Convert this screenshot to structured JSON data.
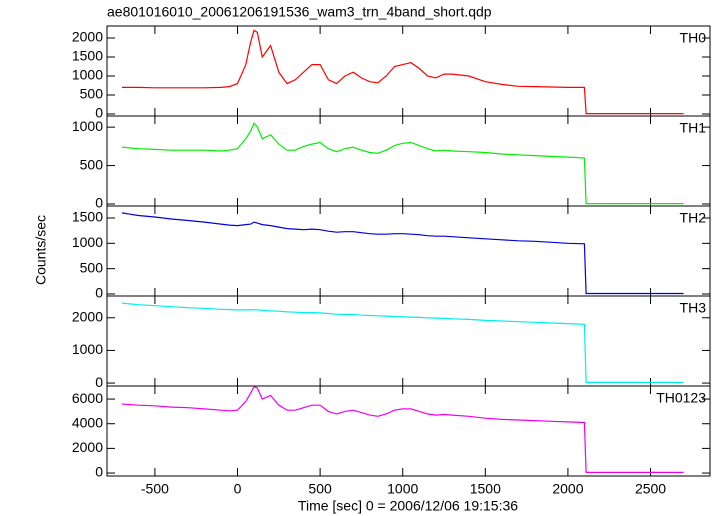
{
  "title": "ae801016010_20061206191536_wam3_trn_4band_short.qdp",
  "ylabel": "Counts/sec",
  "xlabel": "Time [sec] 0 = 2006/12/06 19:15:36",
  "chart_data": [
    {
      "type": "line",
      "x": [
        -700,
        -600,
        -500,
        -400,
        -300,
        -200,
        -100,
        -50,
        0,
        50,
        80,
        100,
        120,
        150,
        200,
        250,
        300,
        350,
        400,
        450,
        500,
        550,
        600,
        650,
        700,
        750,
        800,
        850,
        900,
        950,
        1000,
        1050,
        1100,
        1150,
        1200,
        1250,
        1300,
        1400,
        1500,
        1600,
        1700,
        1800,
        1900,
        2000,
        2100,
        2110,
        2300,
        2500,
        2700
      ],
      "series": [
        {
          "name": "TH0",
          "color": "#ff0000",
          "values": [
            700,
            700,
            690,
            690,
            690,
            690,
            700,
            720,
            800,
            1300,
            1900,
            2200,
            2150,
            1500,
            1800,
            1100,
            800,
            900,
            1100,
            1300,
            1300,
            900,
            800,
            1000,
            1100,
            950,
            850,
            820,
            1000,
            1250,
            1300,
            1350,
            1200,
            1000,
            950,
            1050,
            1050,
            1000,
            850,
            780,
            730,
            720,
            710,
            700,
            700,
            10,
            10,
            10,
            10
          ]
        }
      ],
      "xlim": [
        -790,
        2860
      ],
      "xticks": [
        -500,
        0,
        500,
        1000,
        1500,
        2000,
        2500
      ],
      "ylim": [
        -53,
        2316
      ],
      "yticks": [
        0,
        500,
        1000,
        1500,
        2000
      ]
    },
    {
      "type": "line",
      "x": [
        -700,
        -600,
        -500,
        -400,
        -300,
        -200,
        -100,
        -50,
        0,
        50,
        80,
        100,
        120,
        150,
        200,
        250,
        300,
        350,
        400,
        450,
        500,
        550,
        600,
        650,
        700,
        750,
        800,
        850,
        900,
        950,
        1000,
        1050,
        1100,
        1150,
        1200,
        1250,
        1300,
        1400,
        1500,
        1600,
        1700,
        1800,
        1900,
        2000,
        2100,
        2110,
        2300,
        2500,
        2700
      ],
      "series": [
        {
          "name": "TH1",
          "color": "#00ee00",
          "values": [
            740,
            720,
            710,
            700,
            700,
            700,
            690,
            700,
            720,
            850,
            950,
            1050,
            1000,
            850,
            900,
            780,
            700,
            700,
            750,
            780,
            800,
            720,
            680,
            720,
            740,
            700,
            670,
            660,
            700,
            760,
            790,
            800,
            760,
            720,
            690,
            700,
            690,
            680,
            670,
            650,
            640,
            630,
            620,
            610,
            600,
            5,
            5,
            5,
            5
          ]
        }
      ],
      "xlim": [
        -790,
        2860
      ],
      "xticks": [
        -500,
        0,
        500,
        1000,
        1500,
        2000,
        2500
      ],
      "ylim": [
        -26,
        1145
      ],
      "yticks": [
        0,
        500,
        1000
      ]
    },
    {
      "type": "line",
      "x": [
        -700,
        -600,
        -500,
        -400,
        -300,
        -200,
        -100,
        -50,
        0,
        50,
        80,
        100,
        120,
        150,
        200,
        250,
        300,
        350,
        400,
        450,
        500,
        550,
        600,
        650,
        700,
        750,
        800,
        850,
        900,
        950,
        1000,
        1050,
        1100,
        1150,
        1200,
        1250,
        1300,
        1400,
        1500,
        1600,
        1700,
        1800,
        1900,
        2000,
        2100,
        2110,
        2300,
        2500,
        2700
      ],
      "series": [
        {
          "name": "TH2",
          "color": "#0000dd",
          "values": [
            1600,
            1550,
            1520,
            1480,
            1450,
            1420,
            1380,
            1360,
            1350,
            1370,
            1380,
            1420,
            1400,
            1370,
            1350,
            1320,
            1290,
            1280,
            1270,
            1280,
            1270,
            1240,
            1220,
            1230,
            1230,
            1210,
            1190,
            1180,
            1180,
            1190,
            1190,
            1180,
            1170,
            1150,
            1140,
            1140,
            1130,
            1110,
            1090,
            1070,
            1050,
            1040,
            1020,
            1000,
            990,
            10,
            10,
            10,
            10
          ]
        }
      ],
      "xlim": [
        -790,
        2860
      ],
      "xticks": [
        -500,
        0,
        500,
        1000,
        1500,
        2000,
        2500
      ],
      "ylim": [
        -40,
        1737
      ],
      "yticks": [
        0,
        500,
        1000,
        1500
      ]
    },
    {
      "type": "line",
      "x": [
        -700,
        -600,
        -500,
        -400,
        -300,
        -200,
        -100,
        -50,
        0,
        50,
        80,
        100,
        120,
        150,
        200,
        250,
        300,
        350,
        400,
        450,
        500,
        550,
        600,
        650,
        700,
        750,
        800,
        850,
        900,
        950,
        1000,
        1050,
        1100,
        1150,
        1200,
        1250,
        1300,
        1400,
        1500,
        1600,
        1700,
        1800,
        1900,
        2000,
        2100,
        2110,
        2300,
        2500,
        2700
      ],
      "series": [
        {
          "name": "TH3",
          "color": "#00eeee",
          "values": [
            2450,
            2400,
            2370,
            2340,
            2310,
            2290,
            2260,
            2250,
            2240,
            2240,
            2240,
            2250,
            2240,
            2230,
            2210,
            2200,
            2180,
            2170,
            2160,
            2160,
            2150,
            2130,
            2110,
            2100,
            2100,
            2080,
            2070,
            2060,
            2050,
            2040,
            2030,
            2020,
            2010,
            2000,
            1990,
            1980,
            1970,
            1950,
            1920,
            1900,
            1880,
            1860,
            1840,
            1820,
            1800,
            20,
            20,
            20,
            20
          ]
        }
      ],
      "xlim": [
        -790,
        2860
      ],
      "xticks": [
        -500,
        0,
        500,
        1000,
        1500,
        2000,
        2500
      ],
      "ylim": [
        -90,
        2667
      ],
      "yticks": [
        0,
        1000,
        2000
      ]
    },
    {
      "type": "line",
      "x": [
        -700,
        -600,
        -500,
        -400,
        -300,
        -200,
        -100,
        -50,
        0,
        50,
        80,
        100,
        120,
        150,
        200,
        250,
        300,
        350,
        400,
        450,
        500,
        550,
        600,
        650,
        700,
        750,
        800,
        850,
        900,
        950,
        1000,
        1050,
        1100,
        1150,
        1200,
        1250,
        1300,
        1400,
        1500,
        1600,
        1700,
        1800,
        1900,
        2000,
        2100,
        2110,
        2300,
        2500,
        2700
      ],
      "series": [
        {
          "name": "TH0123",
          "color": "#ee00ee",
          "values": [
            5600,
            5500,
            5450,
            5350,
            5300,
            5200,
            5100,
            5050,
            5100,
            5800,
            6500,
            7000,
            6900,
            6000,
            6300,
            5500,
            5100,
            5100,
            5300,
            5500,
            5500,
            5000,
            4800,
            5000,
            5100,
            4900,
            4700,
            4600,
            4800,
            5100,
            5200,
            5200,
            5000,
            4800,
            4700,
            4750,
            4700,
            4600,
            4450,
            4350,
            4300,
            4250,
            4200,
            4150,
            4100,
            50,
            50,
            50,
            50
          ]
        }
      ],
      "xlim": [
        -790,
        2860
      ],
      "xticks": [
        -500,
        0,
        500,
        1000,
        1500,
        2000,
        2500
      ],
      "ylim": [
        -240,
        7060
      ],
      "yticks": [
        0,
        2000,
        4000,
        6000
      ]
    }
  ]
}
